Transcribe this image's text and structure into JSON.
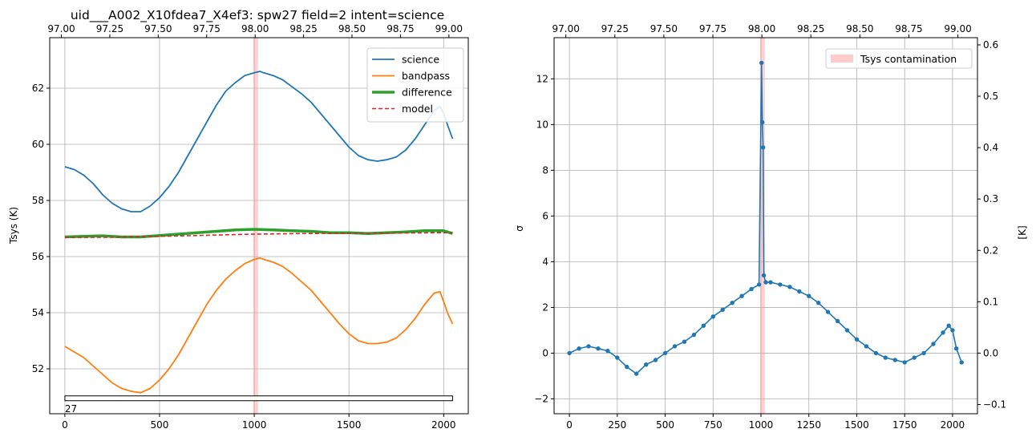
{
  "chart_data": [
    {
      "type": "line",
      "title": "uid___A002_X10fdea7_X4ef3: spw27 field=2 intent=science",
      "xlabel": "",
      "ylabel": "Tsys (K)",
      "xlim": [
        -80,
        2130
      ],
      "ylim": [
        50.4,
        63.8
      ],
      "x_ticks": [
        "0",
        "500",
        "1000",
        "1500",
        "2000"
      ],
      "y_ticks": [
        "52",
        "54",
        "56",
        "58",
        "60",
        "62"
      ],
      "top_axis": {
        "xlim": [
          96.94,
          99.1
        ],
        "ticks": [
          "97.00",
          "97.25",
          "97.50",
          "97.75",
          "98.00",
          "98.25",
          "98.50",
          "98.75",
          "99.00"
        ]
      },
      "grid": true,
      "legend_position": "top-right",
      "contamination_band": [
        995,
        1020
      ],
      "spw_bar": {
        "x": [
          0,
          2047
        ],
        "y": 50.95,
        "label": "27"
      },
      "series": [
        {
          "name": "science",
          "color": "#1f77b4",
          "style": "solid",
          "x": [
            0,
            50,
            100,
            150,
            200,
            250,
            300,
            350,
            400,
            450,
            500,
            550,
            600,
            650,
            700,
            750,
            800,
            850,
            900,
            950,
            1000,
            1030,
            1050,
            1100,
            1150,
            1200,
            1250,
            1300,
            1350,
            1400,
            1450,
            1500,
            1550,
            1600,
            1650,
            1700,
            1750,
            1800,
            1850,
            1900,
            1950,
            1980,
            2000,
            2020,
            2047
          ],
          "y": [
            59.2,
            59.1,
            58.9,
            58.6,
            58.2,
            57.9,
            57.7,
            57.6,
            57.6,
            57.8,
            58.1,
            58.5,
            59.0,
            59.6,
            60.2,
            60.8,
            61.4,
            61.9,
            62.2,
            62.45,
            62.55,
            62.6,
            62.55,
            62.45,
            62.3,
            62.05,
            61.8,
            61.5,
            61.1,
            60.7,
            60.3,
            59.9,
            59.6,
            59.45,
            59.4,
            59.45,
            59.55,
            59.8,
            60.2,
            60.7,
            61.2,
            61.35,
            61.1,
            60.7,
            60.2
          ]
        },
        {
          "name": "bandpass",
          "color": "#ff7f0e",
          "style": "solid",
          "x": [
            0,
            50,
            100,
            150,
            200,
            250,
            300,
            350,
            400,
            450,
            500,
            550,
            600,
            650,
            700,
            750,
            800,
            850,
            900,
            950,
            1000,
            1030,
            1050,
            1100,
            1150,
            1200,
            1250,
            1300,
            1350,
            1400,
            1450,
            1500,
            1550,
            1600,
            1650,
            1700,
            1750,
            1800,
            1850,
            1900,
            1950,
            1980,
            2000,
            2020,
            2047
          ],
          "y": [
            52.8,
            52.6,
            52.4,
            52.1,
            51.8,
            51.5,
            51.3,
            51.2,
            51.15,
            51.3,
            51.6,
            52.0,
            52.5,
            53.1,
            53.7,
            54.3,
            54.8,
            55.2,
            55.5,
            55.75,
            55.9,
            55.95,
            55.9,
            55.8,
            55.65,
            55.4,
            55.1,
            54.8,
            54.4,
            54.0,
            53.6,
            53.25,
            53.0,
            52.9,
            52.9,
            52.95,
            53.1,
            53.4,
            53.8,
            54.3,
            54.7,
            54.75,
            54.4,
            54.0,
            53.6
          ]
        },
        {
          "name": "difference",
          "color": "#2ca02c",
          "style": "thick",
          "x": [
            0,
            100,
            200,
            300,
            400,
            500,
            600,
            700,
            800,
            900,
            1000,
            1100,
            1200,
            1300,
            1400,
            1500,
            1600,
            1700,
            1800,
            1900,
            2000,
            2047
          ],
          "y": [
            56.7,
            56.72,
            56.74,
            56.7,
            56.7,
            56.75,
            56.8,
            56.85,
            56.9,
            56.95,
            56.97,
            56.95,
            56.92,
            56.9,
            56.85,
            56.85,
            56.82,
            56.85,
            56.88,
            56.92,
            56.92,
            56.82
          ]
        },
        {
          "name": "model",
          "color": "#d62728",
          "style": "dashed",
          "x": [
            0,
            250,
            500,
            750,
            1000,
            1250,
            1500,
            1750,
            2047
          ],
          "y": [
            56.68,
            56.69,
            56.72,
            56.76,
            56.8,
            56.82,
            56.83,
            56.84,
            56.85
          ]
        }
      ]
    },
    {
      "type": "line",
      "title": "",
      "xlabel": "",
      "ylabel": "σ",
      "ylabel_right": "[K]",
      "xlim": [
        -80,
        2130
      ],
      "ylim": [
        -2.65,
        13.8
      ],
      "right_ylim": [
        -0.118,
        0.614
      ],
      "x_ticks": [
        "0",
        "250",
        "500",
        "750",
        "1000",
        "1250",
        "1500",
        "1750",
        "2000"
      ],
      "y_ticks": [
        "−2",
        "0",
        "2",
        "4",
        "6",
        "8",
        "10",
        "12"
      ],
      "right_ticks": [
        "−0.1",
        "0.0",
        "0.1",
        "0.2",
        "0.3",
        "0.4",
        "0.5",
        "0.6"
      ],
      "top_axis": {
        "xlim": [
          96.94,
          99.1
        ],
        "ticks": [
          "97.00",
          "97.25",
          "97.50",
          "97.75",
          "98.00",
          "98.25",
          "98.50",
          "98.75",
          "99.00"
        ]
      },
      "grid": true,
      "legend_position": "top-right",
      "legend": [
        "Tsys contamination"
      ],
      "contamination_band": [
        995,
        1020
      ],
      "series": [
        {
          "color": "#1f77b4",
          "style": "line-markers",
          "x": [
            0,
            50,
            100,
            150,
            200,
            250,
            300,
            350,
            400,
            450,
            500,
            550,
            600,
            650,
            700,
            750,
            800,
            850,
            900,
            950,
            990,
            1003,
            1007,
            1011,
            1015,
            1025,
            1050,
            1100,
            1150,
            1200,
            1250,
            1300,
            1350,
            1400,
            1450,
            1500,
            1550,
            1600,
            1650,
            1700,
            1750,
            1800,
            1850,
            1900,
            1950,
            1980,
            2000,
            2020,
            2047
          ],
          "y": [
            0.0,
            0.2,
            0.3,
            0.2,
            0.1,
            -0.2,
            -0.6,
            -0.9,
            -0.5,
            -0.3,
            0.0,
            0.3,
            0.5,
            0.8,
            1.2,
            1.6,
            1.9,
            2.2,
            2.5,
            2.8,
            3.0,
            12.7,
            10.1,
            9.0,
            3.4,
            3.1,
            3.1,
            3.0,
            2.9,
            2.7,
            2.5,
            2.2,
            1.8,
            1.4,
            1.0,
            0.6,
            0.3,
            0.0,
            -0.2,
            -0.3,
            -0.4,
            -0.2,
            0.0,
            0.4,
            0.9,
            1.2,
            1.0,
            0.2,
            -0.4
          ]
        }
      ]
    }
  ]
}
